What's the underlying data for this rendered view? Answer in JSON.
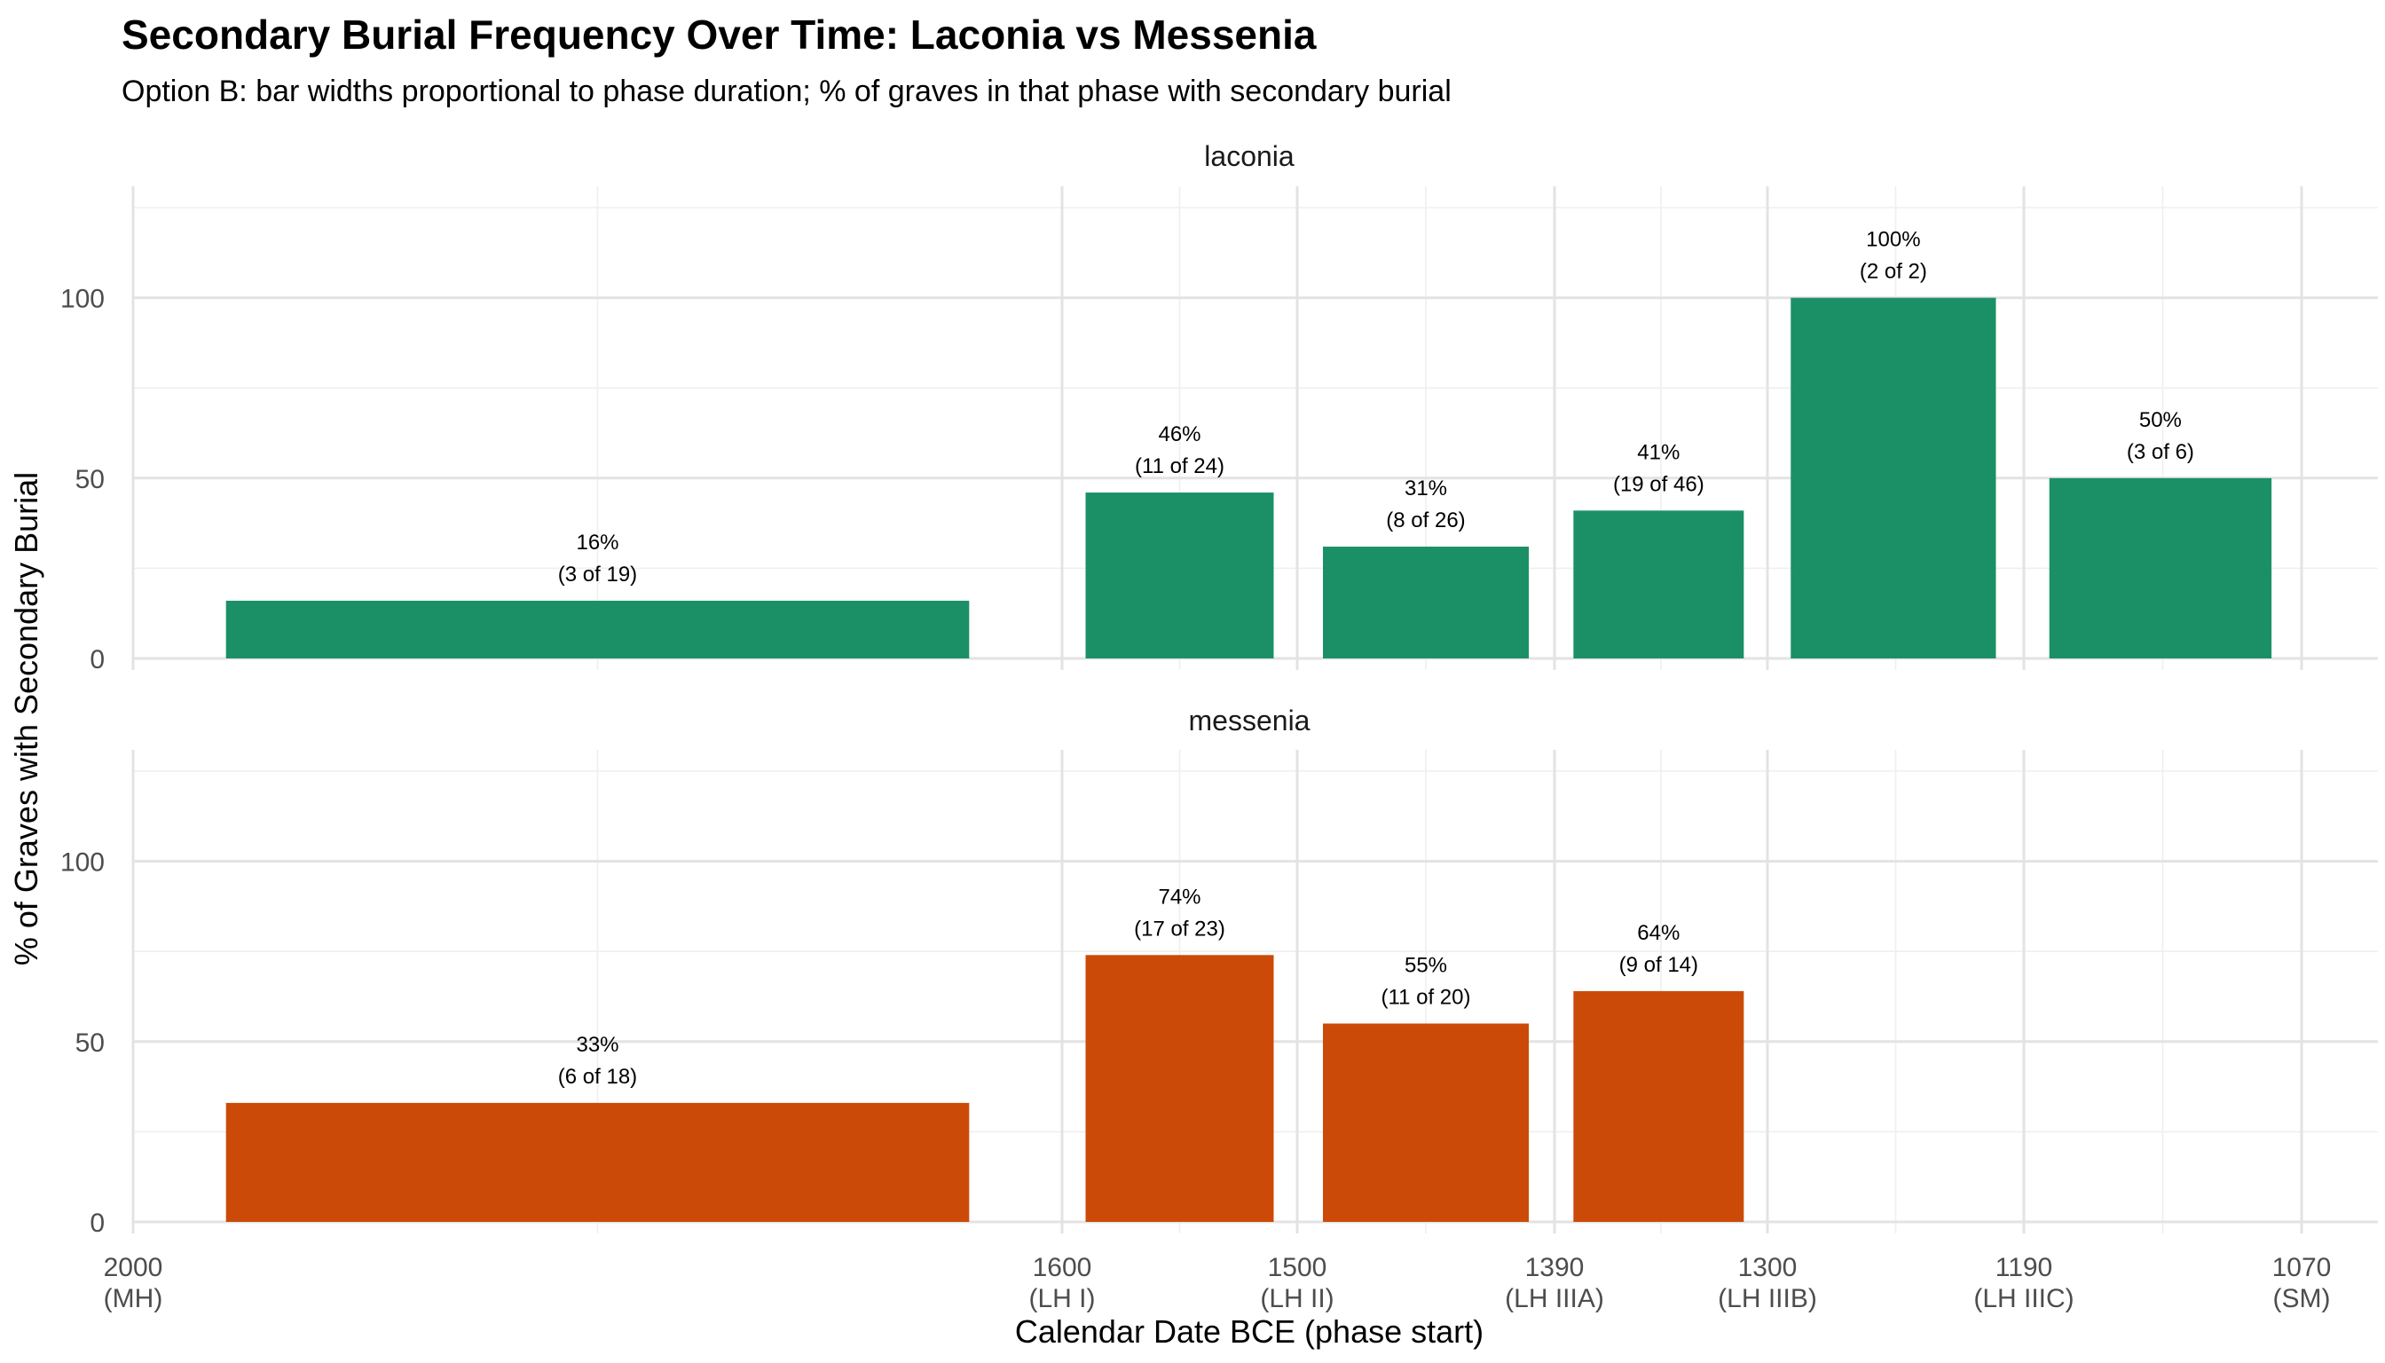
{
  "chart_data": {
    "type": "bar",
    "title": "Secondary Burial Frequency Over Time: Laconia vs Messenia",
    "subtitle": "Option B: bar widths proportional to phase duration; % of graves in that phase with secondary burial",
    "xlabel": "Calendar Date BCE (phase start)",
    "ylabel": "% of Graves with Secondary Burial",
    "x_ticks": [
      {
        "value": 2000,
        "line1": "2000",
        "line2": "(MH)"
      },
      {
        "value": 1600,
        "line1": "1600",
        "line2": "(LH I)"
      },
      {
        "value": 1500,
        "line1": "1500",
        "line2": "(LH II)"
      },
      {
        "value": 1390,
        "line1": "1390",
        "line2": "(LH IIIA)"
      },
      {
        "value": 1300,
        "line1": "1300",
        "line2": "(LH IIIB)"
      },
      {
        "value": 1190,
        "line1": "1190",
        "line2": "(LH IIIC)"
      },
      {
        "value": 1070,
        "line1": "1070",
        "line2": "(SM)"
      }
    ],
    "y_ticks": [
      0,
      50,
      100
    ],
    "ylim": [
      0,
      125
    ],
    "grid": true,
    "panels": [
      {
        "name": "laconia",
        "color": "#1b9066",
        "bars": [
          {
            "start": 1960,
            "end": 1640,
            "value": 16,
            "pct_label": "16%",
            "count_label": "(3 of 19)"
          },
          {
            "start": 1590,
            "end": 1510,
            "value": 46,
            "pct_label": "46%",
            "count_label": "(11 of 24)"
          },
          {
            "start": 1489,
            "end": 1401,
            "value": 31,
            "pct_label": "31%",
            "count_label": "(8 of 26)"
          },
          {
            "start": 1382,
            "end": 1310,
            "value": 41,
            "pct_label": "41%",
            "count_label": "(19 of 46)"
          },
          {
            "start": 1290,
            "end": 1202,
            "value": 100,
            "pct_label": "100%",
            "count_label": "(2 of 2)"
          },
          {
            "start": 1179,
            "end": 1083,
            "value": 50,
            "pct_label": "50%",
            "count_label": "(3 of 6)"
          }
        ]
      },
      {
        "name": "messenia",
        "color": "#cc4a08",
        "bars": [
          {
            "start": 1960,
            "end": 1640,
            "value": 33,
            "pct_label": "33%",
            "count_label": "(6 of 18)"
          },
          {
            "start": 1590,
            "end": 1510,
            "value": 74,
            "pct_label": "74%",
            "count_label": "(17 of 23)"
          },
          {
            "start": 1489,
            "end": 1401,
            "value": 55,
            "pct_label": "55%",
            "count_label": "(11 of 20)"
          },
          {
            "start": 1382,
            "end": 1310,
            "value": 64,
            "pct_label": "64%",
            "count_label": "(9 of 14)"
          }
        ]
      }
    ]
  }
}
